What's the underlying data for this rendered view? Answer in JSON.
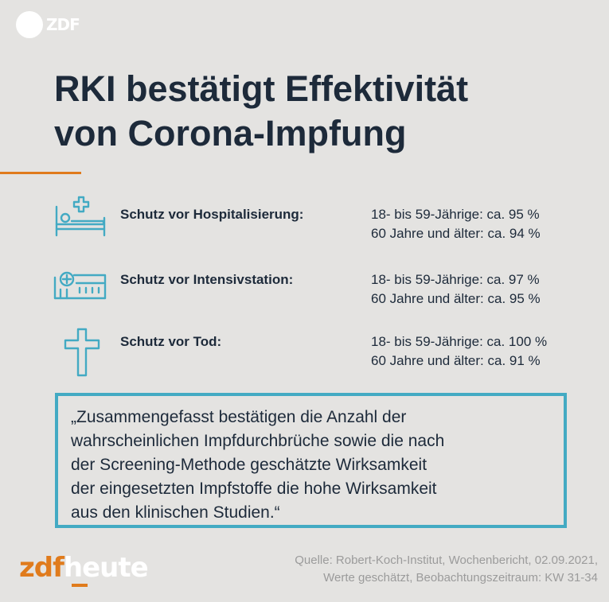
{
  "header": {
    "logo_text": "ZDF",
    "title_lines": [
      "RKI bestätigt Effektivität",
      "von Corona-Impfung"
    ]
  },
  "rows": [
    {
      "icon": "hospital-bed-icon",
      "label": "Schutz vor Hospitalisierung:",
      "values": [
        "18- bis 59-Jährige: ca. 95 %",
        "60 Jahre und älter: ca. 94 %"
      ]
    },
    {
      "icon": "hospital-building-icon",
      "label": "Schutz vor Intensivstation:",
      "values": [
        "18- bis 59-Jährige: ca. 97 %",
        "60 Jahre und älter: ca. 95 %"
      ]
    },
    {
      "icon": "cross-icon",
      "label": "Schutz vor Tod:",
      "values": [
        "18- bis 59-Jährige: ca. 100 %",
        "60 Jahre und älter: ca. 91 %"
      ]
    }
  ],
  "quote": {
    "lines": [
      "„Zusammengefasst bestätigen die Anzahl der",
      "wahrscheinlichen Impfdurchbrüche sowie die nach",
      "der Screening-Methode geschätzte Wirksamkeit",
      "der eingesetzten Impfstoffe die hohe Wirksamkeit",
      "aus den klinischen Studien.“"
    ]
  },
  "footer": {
    "brand_zdf": "zdf",
    "brand_heute": "heute",
    "source_lines": [
      "Quelle: Robert-Koch-Institut, Wochenbericht, 02.09.2021,",
      "Werte geschätzt, Beobachtungszeitraum: KW 31-34"
    ]
  },
  "colors": {
    "background": "#e4e3e1",
    "text": "#1d2a3a",
    "accent_orange": "#e07b1c",
    "accent_blue": "#43aac3",
    "source_gray": "#9b9b9b"
  }
}
